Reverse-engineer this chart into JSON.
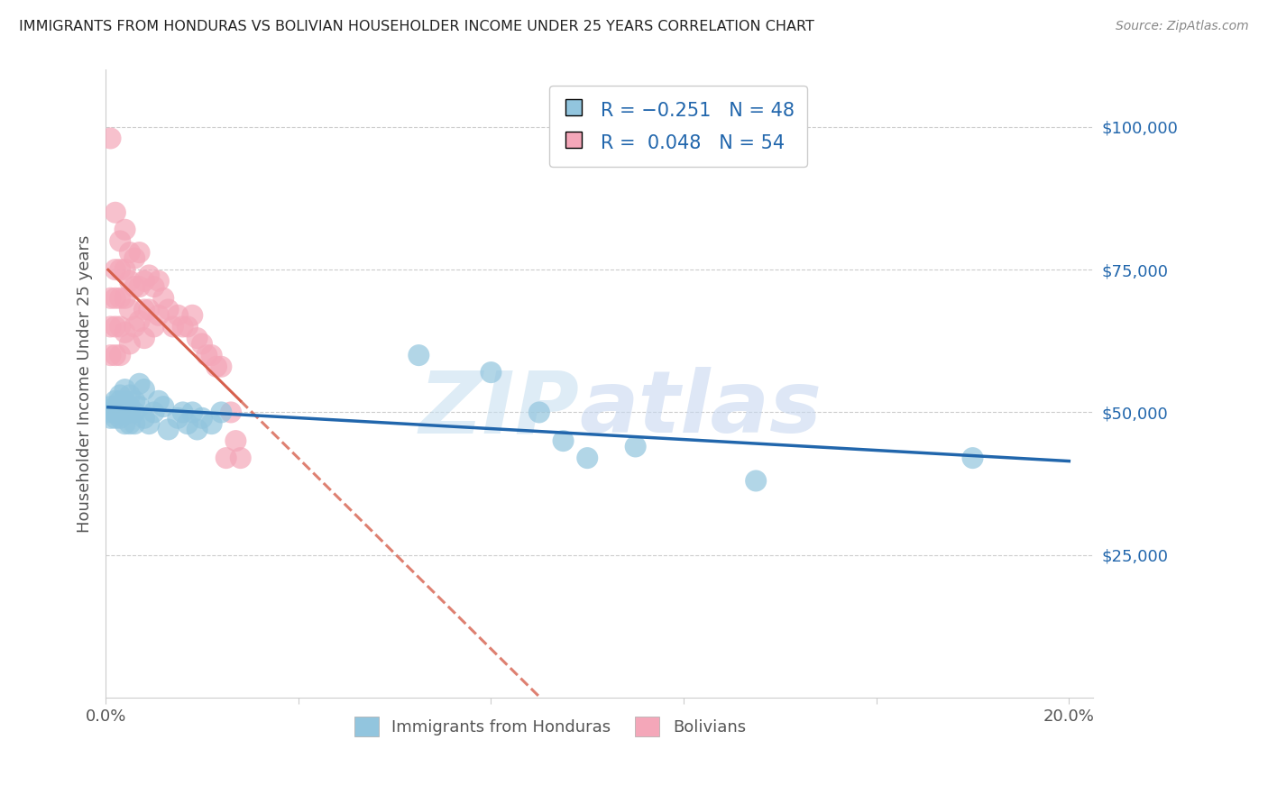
{
  "title": "IMMIGRANTS FROM HONDURAS VS BOLIVIAN HOUSEHOLDER INCOME UNDER 25 YEARS CORRELATION CHART",
  "source": "Source: ZipAtlas.com",
  "ylabel": "Householder Income Under 25 years",
  "ytick_labels": [
    "$25,000",
    "$50,000",
    "$75,000",
    "$100,000"
  ],
  "ytick_values": [
    25000,
    50000,
    75000,
    100000
  ],
  "ylim": [
    0,
    110000
  ],
  "xlim": [
    0.0,
    0.205
  ],
  "blue_color": "#92c5de",
  "pink_color": "#f4a7b9",
  "blue_line_color": "#2166ac",
  "pink_line_color": "#d6604d",
  "legend_text_color": "#2166ac",
  "legend_label1": "Immigrants from Honduras",
  "legend_label2": "Bolivians",
  "blue_x": [
    0.001,
    0.001,
    0.001,
    0.002,
    0.002,
    0.002,
    0.002,
    0.003,
    0.003,
    0.003,
    0.003,
    0.003,
    0.004,
    0.004,
    0.004,
    0.004,
    0.005,
    0.005,
    0.005,
    0.005,
    0.006,
    0.006,
    0.006,
    0.007,
    0.007,
    0.008,
    0.008,
    0.009,
    0.01,
    0.011,
    0.012,
    0.013,
    0.015,
    0.016,
    0.017,
    0.018,
    0.019,
    0.02,
    0.022,
    0.024,
    0.065,
    0.08,
    0.09,
    0.095,
    0.1,
    0.11,
    0.135,
    0.18
  ],
  "blue_y": [
    51000,
    50000,
    49000,
    52000,
    51000,
    50000,
    49000,
    53000,
    52000,
    51000,
    50000,
    49000,
    54000,
    52000,
    50000,
    48000,
    53000,
    51000,
    50000,
    48000,
    52000,
    50000,
    48000,
    55000,
    51000,
    54000,
    49000,
    48000,
    50000,
    52000,
    51000,
    47000,
    49000,
    50000,
    48000,
    50000,
    47000,
    49000,
    48000,
    50000,
    60000,
    57000,
    50000,
    45000,
    42000,
    44000,
    38000,
    42000
  ],
  "pink_x": [
    0.001,
    0.001,
    0.001,
    0.001,
    0.002,
    0.002,
    0.002,
    0.002,
    0.002,
    0.003,
    0.003,
    0.003,
    0.003,
    0.003,
    0.004,
    0.004,
    0.004,
    0.004,
    0.005,
    0.005,
    0.005,
    0.005,
    0.006,
    0.006,
    0.006,
    0.007,
    0.007,
    0.007,
    0.008,
    0.008,
    0.008,
    0.009,
    0.009,
    0.01,
    0.01,
    0.011,
    0.011,
    0.012,
    0.013,
    0.014,
    0.015,
    0.016,
    0.017,
    0.018,
    0.019,
    0.02,
    0.021,
    0.022,
    0.023,
    0.024,
    0.025,
    0.026,
    0.027,
    0.028
  ],
  "pink_y": [
    98000,
    70000,
    65000,
    60000,
    85000,
    75000,
    70000,
    65000,
    60000,
    80000,
    75000,
    70000,
    65000,
    60000,
    82000,
    75000,
    70000,
    64000,
    78000,
    73000,
    68000,
    62000,
    77000,
    72000,
    65000,
    78000,
    72000,
    66000,
    73000,
    68000,
    63000,
    74000,
    68000,
    72000,
    65000,
    73000,
    67000,
    70000,
    68000,
    65000,
    67000,
    65000,
    65000,
    67000,
    63000,
    62000,
    60000,
    60000,
    58000,
    58000,
    42000,
    50000,
    45000,
    42000
  ]
}
